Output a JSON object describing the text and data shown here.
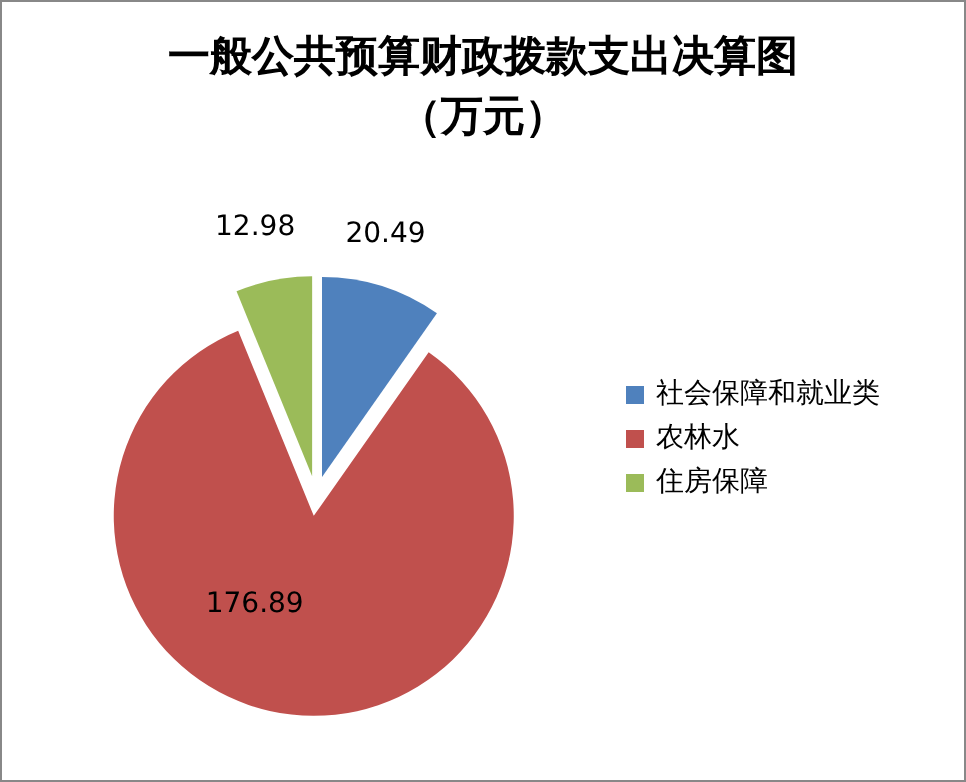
{
  "chart_data": {
    "type": "pie",
    "title": "一般公共预算财政拨款支出决算图",
    "subtitle": "（万元）",
    "categories": [
      "社会保障和就业类",
      "农林水",
      "住房保障"
    ],
    "values": [
      20.49,
      176.89,
      12.98
    ],
    "colors": [
      "#4f81bd",
      "#c0504d",
      "#9bbb59"
    ],
    "data_labels": true,
    "legend": "right"
  }
}
